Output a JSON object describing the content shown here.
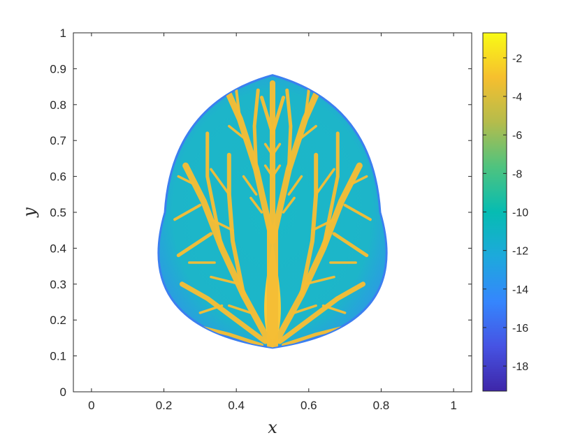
{
  "chart_data": {
    "type": "heatmap",
    "title": "",
    "xlabel": "x",
    "ylabel": "y",
    "xlim": [
      -0.05,
      1.05
    ],
    "ylim": [
      0,
      1
    ],
    "xticks": [
      "0",
      "0.2",
      "0.4",
      "0.6",
      "0.8",
      "1"
    ],
    "yticks": [
      "0",
      "0.1",
      "0.2",
      "0.3",
      "0.4",
      "0.5",
      "0.6",
      "0.7",
      "0.8",
      "0.9",
      "1"
    ],
    "grid": false,
    "domain_shape": "lens bounded by two circular arcs, tips at (0.5, 0.12) and (0.5, 0.885), widest at y = 0.5 from x = 0.2 to x = 0.8",
    "domain_extent": {
      "x": [
        0.2,
        0.8
      ],
      "y": [
        0.12,
        0.885
      ]
    },
    "background_value": -10.5,
    "boundary_value": -15,
    "pattern": "dendritic branching tree of high values (about -3 to -1) rising from the bottom tip at (0.5, 0.12), trunk up to about y = 0.4, branching upward and outward",
    "colorbar": {
      "colormap": "parula",
      "range": [
        -19.3,
        -0.7
      ],
      "ticks": [
        "-2",
        "-4",
        "-6",
        "-8",
        "-10",
        "-12",
        "-14",
        "-16",
        "-18"
      ],
      "tick_values": [
        -2,
        -4,
        -6,
        -8,
        -10,
        -12,
        -14,
        -16,
        -18
      ],
      "stops": [
        "#3e26a8",
        "#4653e3",
        "#3586fd",
        "#1da9dc",
        "#06bcb2",
        "#4ec37f",
        "#b4bc4c",
        "#f6bf2e",
        "#f9fb15"
      ]
    }
  }
}
